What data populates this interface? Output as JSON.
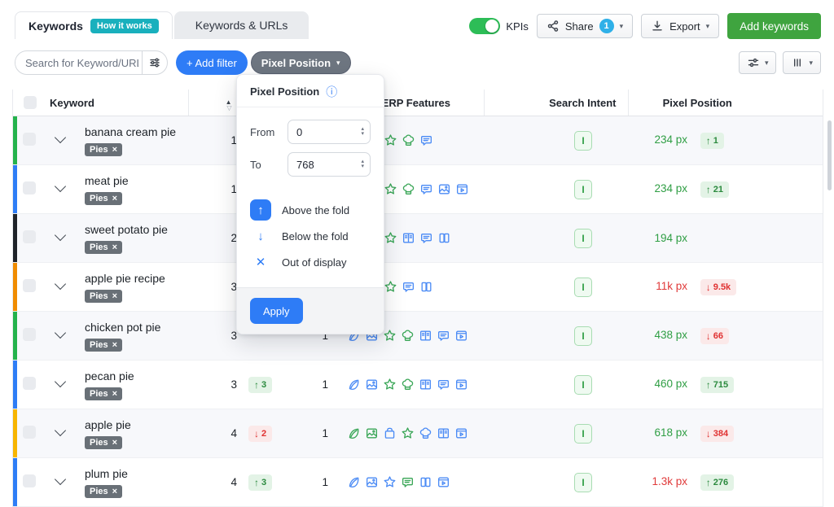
{
  "tabs": {
    "keywords": {
      "label": "Keywords",
      "badge": "How it works"
    },
    "keywords_urls": {
      "label": "Keywords & URLs"
    }
  },
  "header": {
    "kpis_label": "KPIs",
    "share": {
      "label": "Share",
      "count": "1"
    },
    "export_label": "Export",
    "add_keywords_label": "Add keywords"
  },
  "toolbar": {
    "search_placeholder": "Search for Keyword/URL",
    "add_filter_label": "+ Add filter",
    "pixel_filter_label": "Pixel Position"
  },
  "filter_popup": {
    "title": "Pixel Position",
    "from_label": "From",
    "from_value": "0",
    "to_label": "To",
    "to_value": "768",
    "legend": [
      {
        "label": "Above the fold",
        "glyph": "↑",
        "selected": true
      },
      {
        "label": "Below the fold",
        "glyph": "↓",
        "selected": false
      },
      {
        "label": "Out of display",
        "glyph": "✕",
        "selected": false
      }
    ],
    "apply_label": "Apply"
  },
  "icons": {
    "caret_down": "▾",
    "sort_asc": "▲",
    "sort_desc": "▽",
    "info": "ⓘ",
    "tag_close": "×",
    "spinner_up": "▴",
    "spinner_down": "▾"
  },
  "colors": {
    "icon_blue": "#4b8bf5",
    "icon_green": "#3aa657",
    "accent_blue": "#2e7cf6",
    "value_green": "#2f9e44",
    "value_red": "#e03a3a"
  },
  "table": {
    "headers": {
      "keyword": "Keyword",
      "features": "SERP Features",
      "intent": "Search Intent",
      "pixel": "Pixel Position"
    },
    "rows": [
      {
        "keyword": "banana cream pie",
        "tag": "Pies",
        "stripe": "#24b24c",
        "position": "1",
        "pos_change": null,
        "volume": null,
        "features_clipped": true,
        "features": [
          {
            "icon": "star",
            "color": "green"
          },
          {
            "icon": "hat",
            "color": "green"
          },
          {
            "icon": "chat",
            "color": "blue"
          }
        ],
        "intent": "I",
        "pixel": {
          "value": "234 px",
          "tone": "green",
          "change": {
            "dir": "up",
            "text": "1"
          }
        }
      },
      {
        "keyword": "meat pie",
        "tag": "Pies",
        "stripe": "#2e7df6",
        "position": "1",
        "pos_change": null,
        "volume": null,
        "features_clipped": true,
        "features": [
          {
            "icon": "star",
            "color": "green"
          },
          {
            "icon": "hat",
            "color": "green"
          },
          {
            "icon": "chat",
            "color": "blue"
          },
          {
            "icon": "image",
            "color": "blue"
          },
          {
            "icon": "video",
            "color": "blue"
          }
        ],
        "intent": "I",
        "pixel": {
          "value": "234 px",
          "tone": "green",
          "change": {
            "dir": "up",
            "text": "21"
          }
        }
      },
      {
        "keyword": "sweet potato pie",
        "tag": "Pies",
        "stripe": "#1f2329",
        "position": "2",
        "pos_change": null,
        "volume": null,
        "features_clipped": true,
        "features": [
          {
            "icon": "star",
            "color": "green"
          },
          {
            "icon": "book",
            "color": "blue"
          },
          {
            "icon": "chat",
            "color": "blue"
          },
          {
            "icon": "pages",
            "color": "blue"
          }
        ],
        "intent": "I",
        "pixel": {
          "value": "194 px",
          "tone": "green",
          "change": null
        }
      },
      {
        "keyword": "apple pie recipe",
        "tag": "Pies",
        "stripe": "#f08c00",
        "position": "3",
        "pos_change": null,
        "volume": null,
        "features_clipped": true,
        "features": [
          {
            "icon": "star",
            "color": "green"
          },
          {
            "icon": "chat",
            "color": "blue"
          },
          {
            "icon": "pages",
            "color": "blue"
          }
        ],
        "intent": "I",
        "pixel": {
          "value": "11k px",
          "tone": "red",
          "change": {
            "dir": "down",
            "text": "9.5k"
          }
        }
      },
      {
        "keyword": "chicken pot pie",
        "tag": "Pies",
        "stripe": "#24b24c",
        "position": "3",
        "pos_change": null,
        "volume": "1",
        "features_clipped": false,
        "features": [
          {
            "icon": "leaf",
            "color": "blue"
          },
          {
            "icon": "image",
            "color": "blue"
          },
          {
            "icon": "star",
            "color": "green"
          },
          {
            "icon": "hat",
            "color": "green"
          },
          {
            "icon": "book",
            "color": "blue"
          },
          {
            "icon": "chat",
            "color": "blue"
          },
          {
            "icon": "video",
            "color": "blue"
          }
        ],
        "intent": "I",
        "pixel": {
          "value": "438 px",
          "tone": "green",
          "change": {
            "dir": "down",
            "text": "66"
          }
        }
      },
      {
        "keyword": "pecan pie",
        "tag": "Pies",
        "stripe": "#2e7df6",
        "position": "3",
        "pos_change": {
          "dir": "up",
          "text": "3"
        },
        "volume": "1",
        "features_clipped": false,
        "features": [
          {
            "icon": "leaf",
            "color": "blue"
          },
          {
            "icon": "image",
            "color": "blue"
          },
          {
            "icon": "star",
            "color": "green"
          },
          {
            "icon": "hat",
            "color": "green"
          },
          {
            "icon": "book",
            "color": "blue"
          },
          {
            "icon": "chat",
            "color": "blue"
          },
          {
            "icon": "video",
            "color": "blue"
          }
        ],
        "intent": "I",
        "pixel": {
          "value": "460 px",
          "tone": "green",
          "change": {
            "dir": "up",
            "text": "715"
          }
        }
      },
      {
        "keyword": "apple pie",
        "tag": "Pies",
        "stripe": "#f7b500",
        "position": "4",
        "pos_change": {
          "dir": "down",
          "text": "2"
        },
        "volume": "1",
        "features_clipped": false,
        "features": [
          {
            "icon": "leaf",
            "color": "green"
          },
          {
            "icon": "image",
            "color": "green"
          },
          {
            "icon": "bag",
            "color": "blue"
          },
          {
            "icon": "star",
            "color": "green"
          },
          {
            "icon": "hat",
            "color": "blue"
          },
          {
            "icon": "book",
            "color": "blue"
          },
          {
            "icon": "video",
            "color": "blue"
          }
        ],
        "intent": "I",
        "pixel": {
          "value": "618 px",
          "tone": "green",
          "change": {
            "dir": "down",
            "text": "384"
          }
        }
      },
      {
        "keyword": "plum pie",
        "tag": "Pies",
        "stripe": "#2e7df6",
        "position": "4",
        "pos_change": {
          "dir": "up",
          "text": "3"
        },
        "volume": "1",
        "features_clipped": false,
        "features": [
          {
            "icon": "leaf",
            "color": "blue"
          },
          {
            "icon": "image",
            "color": "blue"
          },
          {
            "icon": "star",
            "color": "blue"
          },
          {
            "icon": "chat",
            "color": "green"
          },
          {
            "icon": "pages",
            "color": "blue"
          },
          {
            "icon": "video",
            "color": "blue"
          }
        ],
        "intent": "I",
        "pixel": {
          "value": "1.3k px",
          "tone": "red",
          "change": {
            "dir": "up",
            "text": "276"
          }
        }
      }
    ]
  }
}
